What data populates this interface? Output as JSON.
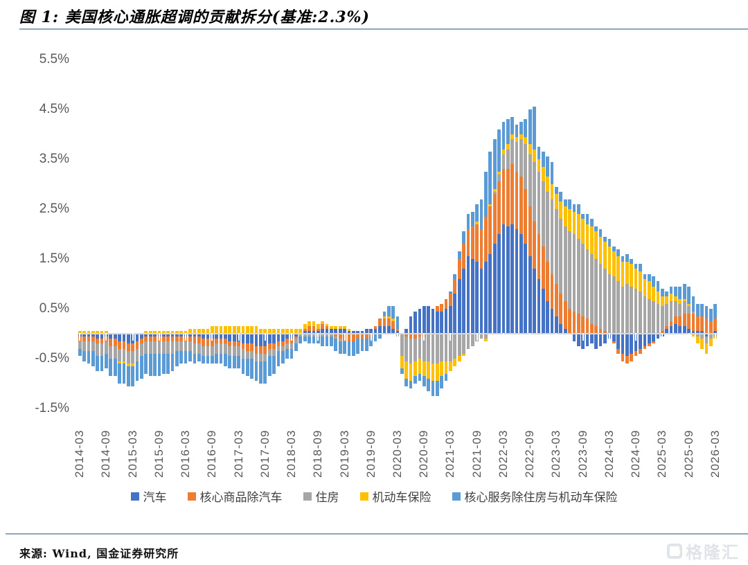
{
  "title": "图 1: 美国核心通胀超调的贡献拆分(基准:2.3%)",
  "source": "来源: Wind, 国金证券研究所",
  "watermark": {
    "text": "格隆汇"
  },
  "styles": {
    "rule_color": "#8aa8bd",
    "axis_label_color": "#595959",
    "legend_text_color": "#404040"
  },
  "chart_data": {
    "type": "bar",
    "stacked": true,
    "unit": "%",
    "frequency": "monthly",
    "x_start": "2014-03",
    "x_end": "2026-03",
    "grid": false,
    "legend_position": "bottom",
    "ylim": [
      -1.5,
      5.5
    ],
    "y_tick_labels": [
      "5.5%",
      "4.5%",
      "3.5%",
      "2.5%",
      "1.5%",
      "0.5%",
      "-0.5%",
      "-1.5%"
    ],
    "x_tick_labels": [
      "2014-03",
      "2014-09",
      "2015-03",
      "2015-09",
      "2016-03",
      "2016-09",
      "2017-03",
      "2017-09",
      "2018-03",
      "2018-09",
      "2019-03",
      "2019-09",
      "2020-03",
      "2020-09",
      "2021-03",
      "2021-09",
      "2022-03",
      "2022-09",
      "2023-03",
      "2023-09",
      "2024-03",
      "2024-09",
      "2025-03",
      "2025-09",
      "2026-03"
    ],
    "x_tick_every": 6,
    "series": [
      {
        "name": "汽车",
        "color": "#4472c4",
        "values": [
          -0.05,
          -0.05,
          -0.05,
          -0.05,
          -0.1,
          -0.1,
          -0.05,
          -0.1,
          -0.1,
          -0.15,
          -0.15,
          -0.2,
          -0.2,
          -0.15,
          -0.1,
          -0.05,
          -0.05,
          -0.05,
          -0.05,
          -0.05,
          -0.05,
          -0.05,
          -0.05,
          -0.05,
          -0.05,
          -0.05,
          -0.05,
          -0.05,
          -0.1,
          -0.1,
          -0.1,
          -0.1,
          -0.1,
          -0.1,
          -0.15,
          -0.15,
          -0.15,
          -0.2,
          -0.2,
          -0.2,
          -0.25,
          -0.25,
          -0.25,
          -0.2,
          -0.2,
          -0.15,
          -0.15,
          -0.1,
          -0.1,
          -0.05,
          0.0,
          0.05,
          0.05,
          0.05,
          0.05,
          0.1,
          0.1,
          0.1,
          0.1,
          0.1,
          0.1,
          0.05,
          0.05,
          0.05,
          0.05,
          0.1,
          0.1,
          0.1,
          0.15,
          0.15,
          0.15,
          0.1,
          0.05,
          0.0,
          0.1,
          0.35,
          0.45,
          0.5,
          0.55,
          0.55,
          0.5,
          0.45,
          0.45,
          0.5,
          0.55,
          0.8,
          1.1,
          1.3,
          1.55,
          1.5,
          1.45,
          1.3,
          1.45,
          1.6,
          1.8,
          2.0,
          2.2,
          2.15,
          2.2,
          2.1,
          2.0,
          1.8,
          1.55,
          1.3,
          1.1,
          0.9,
          0.65,
          0.5,
          0.35,
          0.2,
          0.1,
          0.0,
          -0.15,
          -0.25,
          -0.3,
          -0.25,
          -0.2,
          -0.3,
          -0.25,
          -0.2,
          -0.1,
          -0.15,
          -0.3,
          -0.4,
          -0.45,
          -0.4,
          -0.35,
          -0.3,
          -0.25,
          -0.2,
          -0.15,
          -0.1,
          -0.05,
          0.1,
          0.15,
          0.2,
          0.15,
          0.15,
          0.1,
          0.05,
          0.05,
          0.05,
          -0.05,
          0.0,
          0.05
        ]
      },
      {
        "name": "核心商品除汽车",
        "color": "#ed7d31",
        "values": [
          -0.1,
          -0.1,
          -0.1,
          -0.1,
          -0.1,
          -0.1,
          -0.1,
          -0.15,
          -0.15,
          -0.15,
          -0.15,
          -0.15,
          -0.15,
          -0.15,
          -0.1,
          -0.1,
          -0.1,
          -0.1,
          -0.1,
          -0.1,
          -0.1,
          -0.1,
          -0.1,
          -0.1,
          -0.1,
          -0.1,
          -0.15,
          -0.15,
          -0.15,
          -0.15,
          -0.15,
          -0.1,
          -0.1,
          -0.1,
          -0.1,
          -0.1,
          -0.1,
          -0.1,
          -0.15,
          -0.15,
          -0.15,
          -0.15,
          -0.15,
          -0.1,
          -0.1,
          -0.1,
          -0.1,
          -0.1,
          -0.1,
          -0.05,
          0.0,
          0.05,
          0.1,
          0.1,
          0.05,
          0.1,
          0.05,
          0.0,
          -0.05,
          -0.1,
          -0.15,
          -0.15,
          -0.15,
          -0.1,
          -0.1,
          -0.1,
          -0.05,
          0.05,
          0.15,
          0.15,
          0.15,
          0.15,
          0.05,
          0.0,
          -0.05,
          -0.1,
          -0.1,
          -0.05,
          -0.05,
          0.0,
          0.0,
          0.1,
          0.15,
          0.2,
          0.25,
          0.3,
          0.4,
          0.5,
          0.55,
          0.65,
          0.75,
          0.8,
          0.9,
          0.95,
          1.0,
          1.05,
          1.1,
          1.15,
          1.2,
          1.15,
          1.15,
          1.1,
          1.0,
          0.95,
          0.9,
          0.85,
          0.8,
          0.7,
          0.65,
          0.6,
          0.55,
          0.5,
          0.45,
          0.4,
          0.35,
          0.3,
          0.2,
          0.15,
          0.1,
          0.05,
          0.0,
          -0.05,
          -0.1,
          -0.15,
          -0.15,
          -0.15,
          -0.1,
          -0.1,
          -0.05,
          -0.05,
          -0.05,
          0.0,
          0.05,
          0.05,
          0.1,
          0.15,
          0.2,
          0.25,
          0.3,
          0.35,
          0.3,
          0.3,
          0.3,
          0.25,
          0.25
        ]
      },
      {
        "name": "住房",
        "color": "#a6a6a6",
        "values": [
          -0.15,
          -0.2,
          -0.2,
          -0.2,
          -0.25,
          -0.25,
          -0.25,
          -0.25,
          -0.25,
          -0.25,
          -0.25,
          -0.25,
          -0.25,
          -0.25,
          -0.25,
          -0.25,
          -0.25,
          -0.25,
          -0.25,
          -0.25,
          -0.25,
          -0.25,
          -0.2,
          -0.2,
          -0.2,
          -0.2,
          -0.2,
          -0.2,
          -0.2,
          -0.2,
          -0.2,
          -0.2,
          -0.2,
          -0.2,
          -0.2,
          -0.2,
          -0.2,
          -0.2,
          -0.15,
          -0.15,
          -0.15,
          -0.15,
          -0.15,
          -0.15,
          -0.15,
          -0.1,
          -0.1,
          -0.1,
          -0.1,
          -0.1,
          -0.05,
          -0.05,
          -0.05,
          -0.05,
          -0.05,
          -0.05,
          -0.05,
          -0.05,
          -0.05,
          -0.05,
          0.0,
          0.0,
          0.0,
          0.0,
          0.0,
          0.0,
          0.0,
          0.0,
          0.0,
          0.0,
          0.0,
          0.0,
          -0.05,
          -0.45,
          -0.5,
          -0.5,
          -0.45,
          -0.45,
          -0.5,
          -0.55,
          -0.6,
          -0.6,
          -0.55,
          -0.55,
          -0.55,
          -0.5,
          -0.45,
          -0.4,
          -0.3,
          -0.25,
          -0.15,
          -0.1,
          -0.1,
          0.0,
          0.05,
          0.15,
          0.3,
          0.4,
          0.5,
          0.6,
          0.75,
          0.9,
          1.05,
          1.2,
          1.25,
          1.3,
          1.4,
          1.5,
          1.5,
          1.5,
          1.5,
          1.55,
          1.55,
          1.5,
          1.45,
          1.4,
          1.4,
          1.35,
          1.3,
          1.25,
          1.2,
          1.15,
          1.05,
          0.95,
          1.0,
          0.95,
          0.9,
          0.85,
          0.75,
          0.7,
          0.65,
          0.6,
          0.5,
          0.45,
          0.4,
          0.3,
          0.25,
          0.25,
          0.15,
          0.05,
          -0.05,
          -0.1,
          -0.15,
          -0.1,
          -0.05
        ]
      },
      {
        "name": "机动车保险",
        "color": "#ffc000",
        "values": [
          0.05,
          0.05,
          0.05,
          0.05,
          0.05,
          0.05,
          0.05,
          0.0,
          0.0,
          -0.05,
          -0.05,
          -0.05,
          -0.05,
          0.0,
          0.0,
          0.05,
          0.05,
          0.05,
          0.05,
          0.05,
          0.05,
          0.05,
          0.05,
          0.05,
          0.05,
          0.1,
          0.1,
          0.1,
          0.1,
          0.1,
          0.15,
          0.15,
          0.15,
          0.15,
          0.15,
          0.15,
          0.15,
          0.15,
          0.15,
          0.15,
          0.15,
          0.1,
          0.1,
          0.1,
          0.1,
          0.1,
          0.1,
          0.1,
          0.1,
          0.1,
          0.1,
          0.1,
          0.1,
          0.1,
          0.1,
          0.05,
          0.05,
          0.05,
          0.05,
          0.05,
          0.05,
          0.05,
          0.0,
          0.0,
          0.0,
          0.0,
          0.0,
          0.0,
          0.0,
          0.05,
          0.05,
          0.05,
          0.0,
          -0.25,
          -0.35,
          -0.35,
          -0.3,
          -0.3,
          -0.3,
          -0.35,
          -0.35,
          -0.35,
          -0.3,
          -0.25,
          -0.2,
          -0.15,
          -0.1,
          -0.05,
          0.0,
          0.0,
          0.05,
          0.0,
          -0.05,
          0.05,
          0.05,
          0.05,
          0.1,
          0.1,
          0.1,
          0.1,
          0.1,
          0.15,
          0.2,
          0.25,
          0.25,
          0.3,
          0.3,
          0.3,
          0.3,
          0.35,
          0.4,
          0.45,
          0.45,
          0.5,
          0.5,
          0.5,
          0.55,
          0.55,
          0.55,
          0.55,
          0.55,
          0.5,
          0.5,
          0.5,
          0.45,
          0.45,
          0.4,
          0.4,
          0.35,
          0.35,
          0.3,
          0.25,
          0.2,
          0.15,
          0.15,
          0.1,
          0.1,
          0.05,
          0.05,
          -0.05,
          -0.15,
          -0.2,
          -0.2,
          -0.15,
          -0.05
        ]
      },
      {
        "name": "核心服务除住房与机动车保险",
        "color": "#5b9bd5",
        "values": [
          -0.15,
          -0.2,
          -0.25,
          -0.3,
          -0.3,
          -0.3,
          -0.3,
          -0.35,
          -0.35,
          -0.4,
          -0.4,
          -0.4,
          -0.4,
          -0.4,
          -0.45,
          -0.4,
          -0.45,
          -0.45,
          -0.45,
          -0.4,
          -0.4,
          -0.35,
          -0.3,
          -0.25,
          -0.25,
          -0.2,
          -0.2,
          -0.15,
          -0.15,
          -0.15,
          -0.15,
          -0.2,
          -0.2,
          -0.25,
          -0.25,
          -0.25,
          -0.25,
          -0.3,
          -0.35,
          -0.4,
          -0.4,
          -0.45,
          -0.45,
          -0.4,
          -0.35,
          -0.3,
          -0.25,
          -0.2,
          -0.2,
          -0.15,
          -0.15,
          -0.1,
          -0.15,
          -0.15,
          -0.15,
          -0.2,
          -0.2,
          -0.2,
          -0.25,
          -0.25,
          -0.25,
          -0.3,
          -0.3,
          -0.3,
          -0.25,
          -0.25,
          -0.2,
          -0.15,
          -0.1,
          0.1,
          0.2,
          0.25,
          0.25,
          -0.1,
          -0.15,
          -0.15,
          -0.15,
          -0.15,
          -0.2,
          -0.25,
          -0.3,
          -0.3,
          -0.25,
          -0.15,
          0.05,
          0.1,
          0.15,
          0.25,
          0.3,
          0.3,
          0.35,
          0.6,
          0.9,
          1.05,
          1.0,
          0.85,
          0.55,
          0.5,
          0.35,
          0.25,
          0.25,
          0.35,
          0.7,
          0.85,
          0.25,
          0.3,
          0.4,
          0.45,
          0.15,
          0.2,
          0.15,
          0.2,
          0.15,
          0.2,
          0.1,
          0.2,
          0.15,
          0.1,
          0.15,
          0.1,
          0.15,
          0.1,
          0.15,
          0.1,
          0.15,
          0.1,
          0.1,
          0.15,
          0.1,
          0.15,
          0.2,
          0.2,
          0.15,
          0.1,
          0.15,
          0.2,
          0.25,
          0.3,
          0.35,
          0.3,
          0.25,
          0.25,
          0.25,
          0.25,
          0.3
        ]
      }
    ]
  }
}
